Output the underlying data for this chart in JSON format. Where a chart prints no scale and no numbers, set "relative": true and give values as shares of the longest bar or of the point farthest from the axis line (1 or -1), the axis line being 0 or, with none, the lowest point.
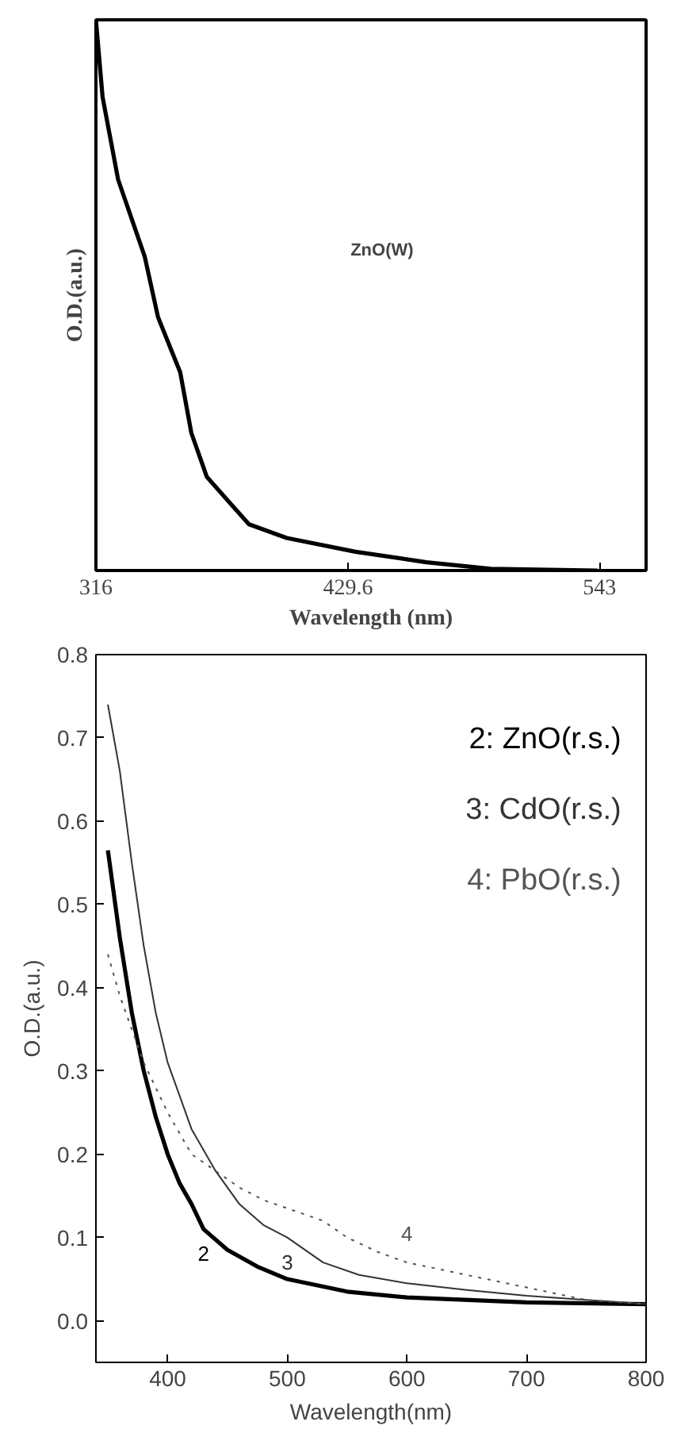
{
  "chart_data": [
    {
      "type": "line",
      "relative": true,
      "xlabel": "Wavelength (nm)",
      "ylabel": "O.D.(a.u.)",
      "annotations": [
        "ZnO(W)"
      ],
      "xlim": [
        316,
        564
      ],
      "xticks": [
        316,
        429.6,
        543
      ],
      "tick_labels": "x",
      "line_style": "solid",
      "series": [
        {
          "color": "#000000",
          "x": [
            316,
            319,
            326,
            338,
            344,
            354,
            359,
            366,
            377,
            385,
            402,
            433,
            465,
            494,
            542
          ],
          "values": [
            1.0,
            0.86,
            0.71,
            0.57,
            0.46,
            0.36,
            0.25,
            0.17,
            0.12,
            0.084,
            0.059,
            0.034,
            0.015,
            0.003,
            0.0
          ]
        }
      ]
    },
    {
      "type": "line",
      "xlabel": "Wavelength(nm)",
      "ylabel": "O.D.(a.u.)",
      "xlim": [
        340,
        800
      ],
      "ylim": [
        -0.05,
        0.8
      ],
      "xticks": [
        400,
        500,
        600,
        700,
        800
      ],
      "yticks": [
        {
          "value": 0,
          "label": "0.0"
        },
        0.1,
        0.2,
        0.3,
        0.4,
        0.5,
        0.6,
        0.7,
        0.8
      ],
      "legend": "top right",
      "annotations": [
        "2",
        "3",
        "4"
      ],
      "series": [
        {
          "name": "2:  ZnO(r.s.)",
          "color": "#000000",
          "line_style": "solid",
          "x": [
            350,
            360,
            370,
            380,
            390,
            400,
            410,
            420,
            430,
            450,
            475,
            500,
            550,
            600,
            700,
            800
          ],
          "values": [
            0.565,
            0.46,
            0.37,
            0.3,
            0.245,
            0.2,
            0.165,
            0.14,
            0.11,
            0.085,
            0.065,
            0.05,
            0.035,
            0.028,
            0.022,
            0.02
          ]
        },
        {
          "name": "3:  CdO(r.s.)",
          "color": "#333333",
          "line_style": "solid",
          "x": [
            350,
            360,
            370,
            380,
            390,
            400,
            420,
            440,
            460,
            480,
            500,
            530,
            560,
            600,
            650,
            700,
            800
          ],
          "values": [
            0.74,
            0.66,
            0.55,
            0.45,
            0.37,
            0.31,
            0.23,
            0.18,
            0.14,
            0.115,
            0.1,
            0.07,
            0.055,
            0.045,
            0.037,
            0.03,
            0.02
          ]
        },
        {
          "name": "4:  PbO(r.s.)",
          "color": "#555555",
          "line_style": "dotted",
          "x": [
            350,
            360,
            370,
            380,
            400,
            420,
            440,
            460,
            480,
            500,
            520,
            530,
            550,
            575,
            600,
            650,
            700,
            750,
            800
          ],
          "values": [
            0.44,
            0.39,
            0.35,
            0.31,
            0.25,
            0.2,
            0.18,
            0.16,
            0.145,
            0.135,
            0.125,
            0.12,
            0.1,
            0.083,
            0.07,
            0.055,
            0.04,
            0.025,
            0.02
          ]
        }
      ]
    }
  ]
}
